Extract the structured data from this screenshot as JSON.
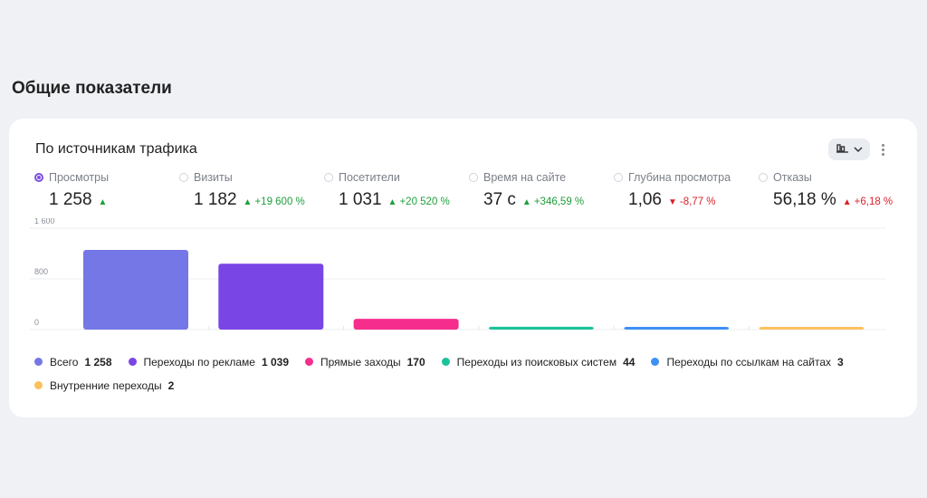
{
  "section_title": "Общие показатели",
  "card": {
    "title": "По источникам трафика",
    "chart_type_icon": "bar-chart-icon",
    "more_icon": "more-vertical-icon"
  },
  "metrics": [
    {
      "label": "Просмотры",
      "value": "1 258",
      "change": "",
      "direction": "up",
      "selected": true
    },
    {
      "label": "Визиты",
      "value": "1 182",
      "change": "+19 600 %",
      "direction": "up",
      "selected": false
    },
    {
      "label": "Посетители",
      "value": "1 031",
      "change": "+20 520 %",
      "direction": "up",
      "selected": false
    },
    {
      "label": "Время на сайте",
      "value": "37 с",
      "change": "+346,59 %",
      "direction": "up",
      "selected": false
    },
    {
      "label": "Глубина просмотра",
      "value": "1,06",
      "change": "-8,77 %",
      "direction": "down",
      "selected": false
    },
    {
      "label": "Отказы",
      "value": "56,18 %",
      "change": "+6,18 %",
      "direction": "up-bad",
      "selected": false
    }
  ],
  "chart_data": {
    "type": "bar",
    "title": "",
    "xlabel": "",
    "ylabel": "",
    "ylim": [
      0,
      1600
    ],
    "y_ticks": [
      0,
      800,
      1600
    ],
    "y_tick_labels": [
      "0",
      "800",
      "1 600"
    ],
    "grid": true,
    "categories": [
      "Всего",
      "Переходы по рекламе",
      "Прямые заходы",
      "Переходы из поисковых систем",
      "Переходы по ссылкам на сайтах",
      "Внутренние переходы"
    ],
    "values": [
      1258,
      1039,
      170,
      44,
      3,
      2
    ],
    "colors": [
      "#7577e6",
      "#7a45e5",
      "#f52d8c",
      "#1cc29a",
      "#3f8ff5",
      "#fbc15e"
    ]
  },
  "legend": [
    {
      "label": "Всего",
      "value": "1 258",
      "color": "#7577e6"
    },
    {
      "label": "Переходы по рекламе",
      "value": "1 039",
      "color": "#7a45e5"
    },
    {
      "label": "Прямые заходы",
      "value": "170",
      "color": "#f52d8c"
    },
    {
      "label": "Переходы из поисковых систем",
      "value": "44",
      "color": "#1cc29a"
    },
    {
      "label": "Переходы по ссылкам на сайтах",
      "value": "3",
      "color": "#3f8ff5"
    },
    {
      "label": "Внутренние переходы",
      "value": "2",
      "color": "#fbc15e"
    }
  ]
}
